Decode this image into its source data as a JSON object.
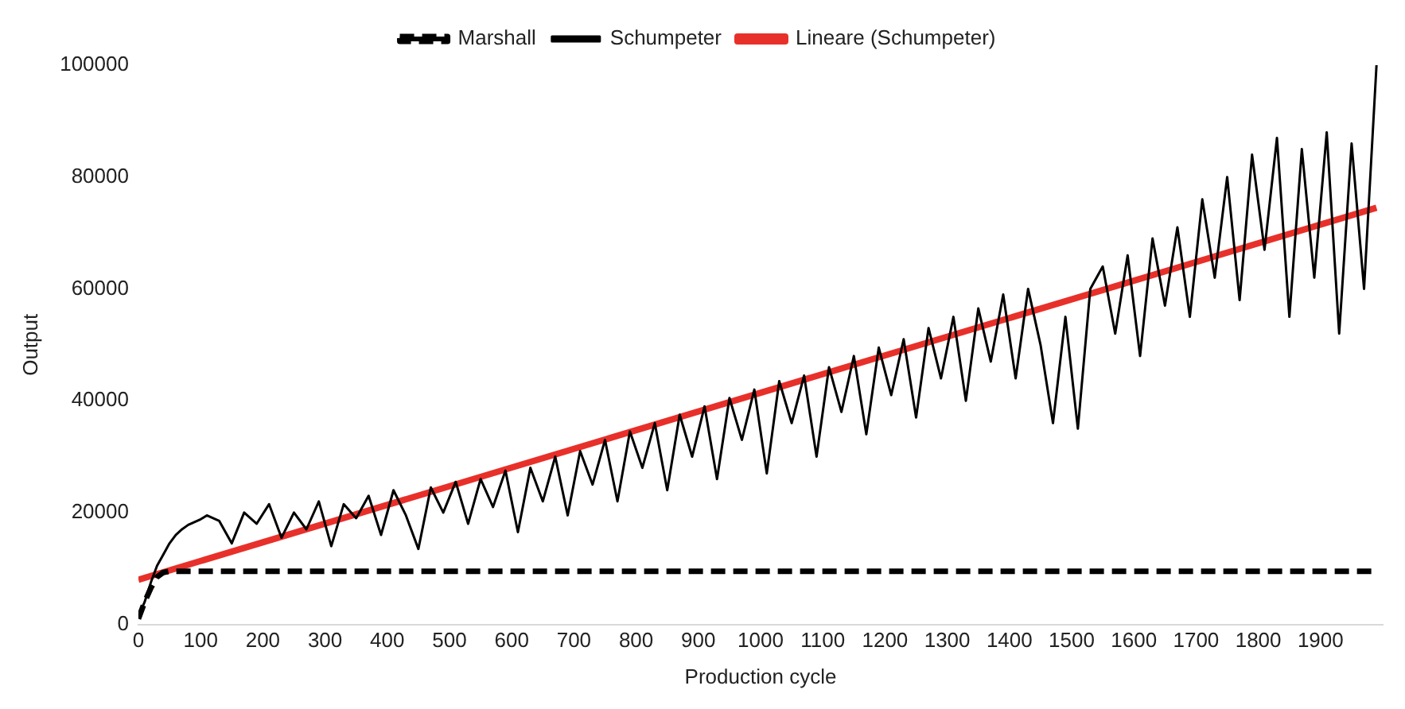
{
  "chart_data": {
    "type": "line",
    "xlabel": "Production cycle",
    "ylabel": "Output",
    "xlim": [
      0,
      2000
    ],
    "xticks": [
      0,
      100,
      200,
      300,
      400,
      500,
      600,
      700,
      800,
      900,
      1000,
      1100,
      1200,
      1300,
      1400,
      1500,
      1600,
      1700,
      1800,
      1900
    ],
    "ylim": [
      0,
      100000
    ],
    "yticks": [
      0,
      20000,
      40000,
      60000,
      80000,
      100000
    ],
    "grid": false,
    "legend": "top",
    "marker": "none",
    "series": [
      {
        "name": "Marshall",
        "color": "#000000",
        "line_style": "dashed",
        "x": [
          0,
          10,
          20,
          30,
          40,
          50,
          1990
        ],
        "values": [
          1000,
          4000,
          6500,
          8500,
          9300,
          9500,
          9500
        ]
      },
      {
        "name": "Schumpeter",
        "color": "#000000",
        "line_style": "solid",
        "x": [
          0,
          10,
          20,
          30,
          40,
          50,
          60,
          70,
          80,
          90,
          100,
          110,
          130,
          150,
          170,
          190,
          210,
          230,
          250,
          270,
          290,
          310,
          330,
          350,
          370,
          390,
          410,
          430,
          450,
          470,
          490,
          510,
          530,
          550,
          570,
          590,
          610,
          630,
          650,
          670,
          690,
          710,
          730,
          750,
          770,
          790,
          810,
          830,
          850,
          870,
          890,
          910,
          930,
          950,
          970,
          990,
          1010,
          1030,
          1050,
          1070,
          1090,
          1110,
          1130,
          1150,
          1170,
          1190,
          1210,
          1230,
          1250,
          1270,
          1290,
          1310,
          1330,
          1350,
          1370,
          1390,
          1410,
          1430,
          1450,
          1470,
          1490,
          1510,
          1530,
          1550,
          1570,
          1590,
          1610,
          1630,
          1650,
          1670,
          1690,
          1710,
          1730,
          1750,
          1770,
          1790,
          1810,
          1830,
          1850,
          1870,
          1890,
          1910,
          1930,
          1950,
          1970,
          1990
        ],
        "values": [
          1500,
          4000,
          7500,
          10500,
          12500,
          14500,
          16000,
          17000,
          17800,
          18300,
          18800,
          19500,
          18500,
          14500,
          20000,
          18000,
          21500,
          15500,
          20000,
          17000,
          22000,
          14000,
          21500,
          19000,
          23000,
          16000,
          24000,
          19500,
          13500,
          24500,
          20000,
          25500,
          18000,
          26000,
          21000,
          27500,
          16500,
          28000,
          22000,
          30000,
          19500,
          31000,
          25000,
          33000,
          22000,
          34500,
          28000,
          36000,
          24000,
          37500,
          30000,
          39000,
          26000,
          40500,
          33000,
          42000,
          27000,
          43500,
          36000,
          44500,
          30000,
          46000,
          38000,
          48000,
          34000,
          49500,
          41000,
          51000,
          37000,
          53000,
          44000,
          55000,
          40000,
          56500,
          47000,
          59000,
          44000,
          60000,
          50000,
          36000,
          55000,
          35000,
          60000,
          64000,
          52000,
          66000,
          48000,
          69000,
          57000,
          71000,
          55000,
          76000,
          62000,
          80000,
          58000,
          84000,
          67000,
          87000,
          55000,
          85000,
          62000,
          88000,
          52000,
          86000,
          60000,
          100000
        ]
      },
      {
        "name": "Lineare (Schumpeter)",
        "color": "#e8302a",
        "line_style": "solid",
        "x": [
          0,
          1990
        ],
        "values": [
          8000,
          74500
        ]
      }
    ]
  }
}
